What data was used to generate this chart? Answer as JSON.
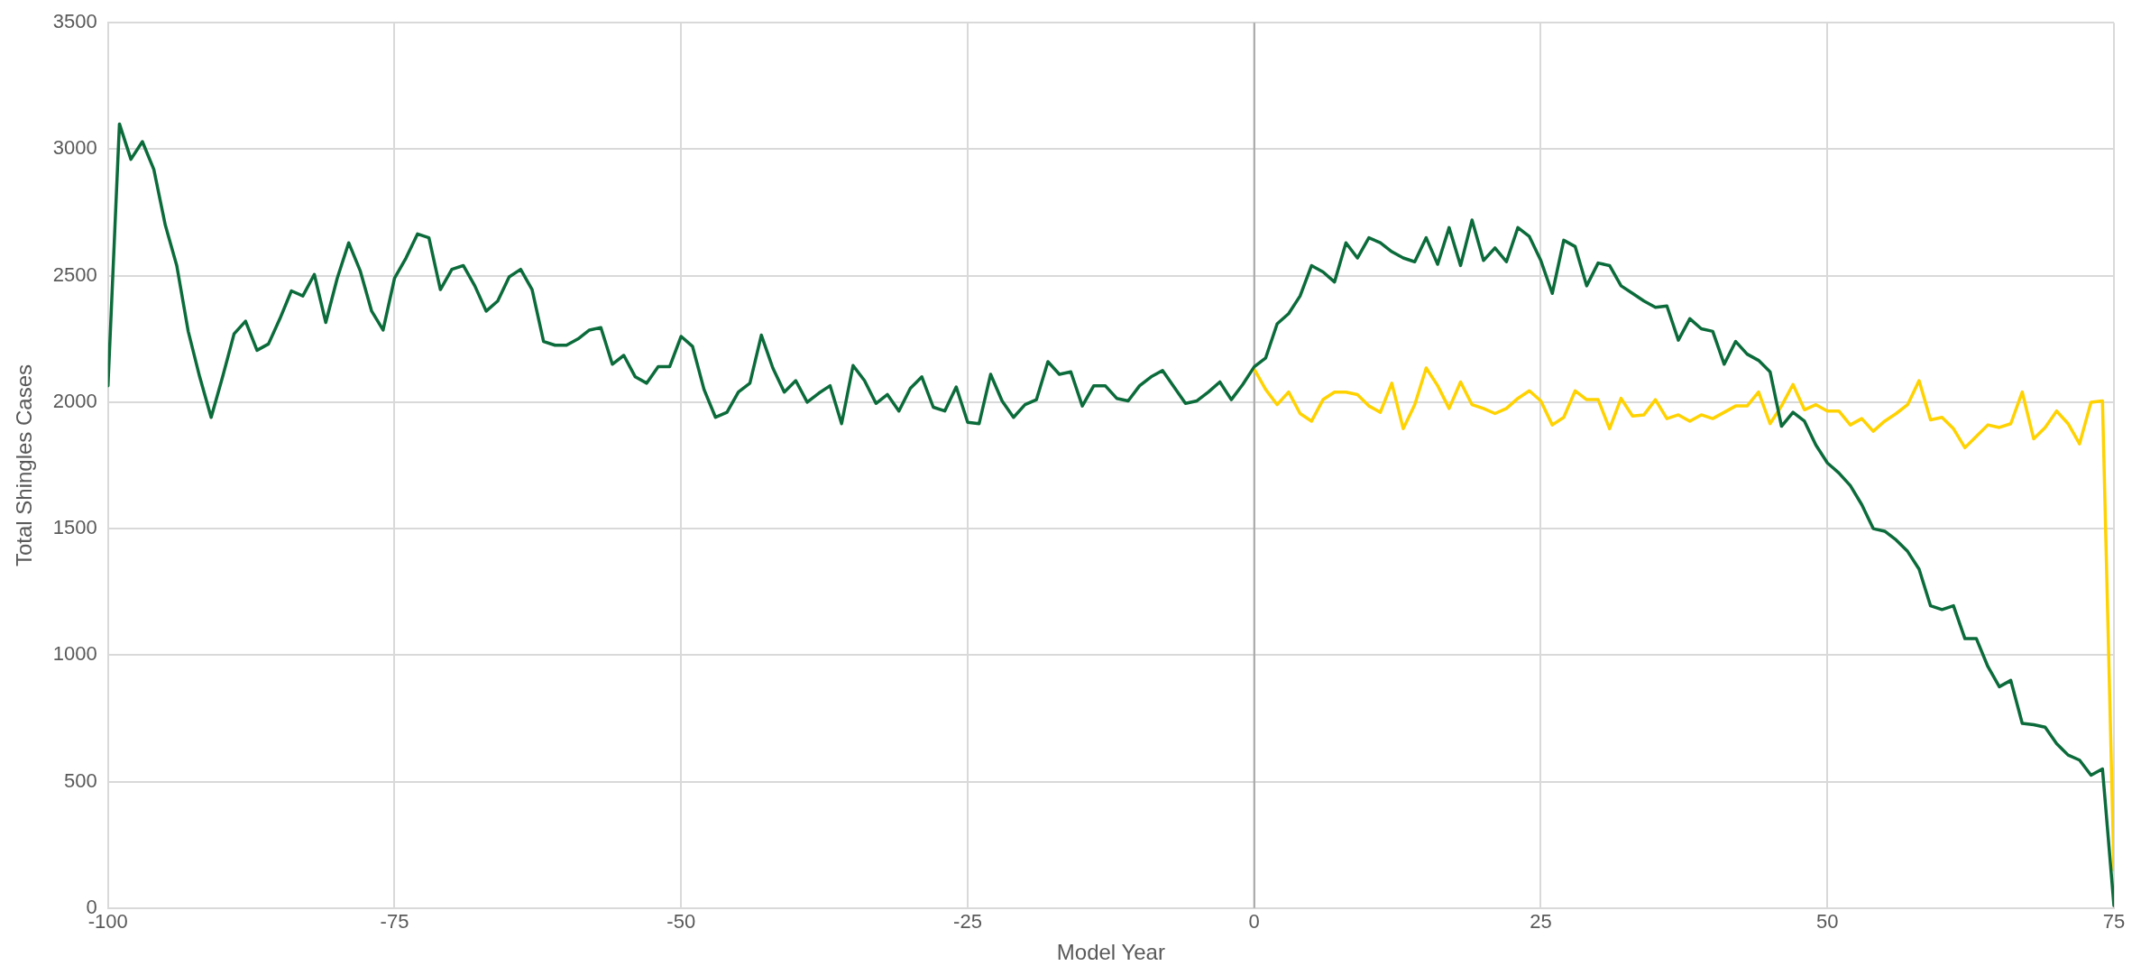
{
  "chart_data": {
    "type": "line",
    "xlabel": "Model Year",
    "ylabel": "Total Shingles Cases",
    "xlim": [
      -100,
      75
    ],
    "xticks": [
      -100,
      -75,
      -50,
      -25,
      0,
      25,
      50,
      75
    ],
    "ylim": [
      0,
      3500
    ],
    "yticks": [
      0,
      500,
      1000,
      1500,
      2000,
      2500,
      3000,
      3500
    ],
    "grid": true,
    "legend": false,
    "marker": "none",
    "line_style": "solid",
    "ref_lines": [
      {
        "axis": "x",
        "value": 0,
        "color": "#a6a6a6"
      }
    ],
    "series": [
      {
        "color": "#0b6b3a",
        "x": [
          -100,
          -99,
          -98,
          -97,
          -96,
          -95,
          -94,
          -93,
          -92,
          -91,
          -90,
          -89,
          -88,
          -87,
          -86,
          -85,
          -84,
          -83,
          -82,
          -81,
          -80,
          -79,
          -78,
          -77,
          -76,
          -75,
          -74,
          -73,
          -72,
          -71,
          -70,
          -69,
          -68,
          -67,
          -66,
          -65,
          -64,
          -63,
          -62,
          -61,
          -60,
          -59,
          -58,
          -57,
          -56,
          -55,
          -54,
          -53,
          -52,
          -51,
          -50,
          -49,
          -48,
          -47,
          -46,
          -45,
          -44,
          -43,
          -42,
          -41,
          -40,
          -39,
          -38,
          -37,
          -36,
          -35,
          -34,
          -33,
          -32,
          -31,
          -30,
          -29,
          -28,
          -27,
          -26,
          -25,
          -24,
          -23,
          -22,
          -21,
          -20,
          -19,
          -18,
          -17,
          -16,
          -15,
          -14,
          -13,
          -12,
          -11,
          -10,
          -9,
          -8,
          -7,
          -6,
          -5,
          -4,
          -3,
          -2,
          -1,
          0,
          1,
          2,
          3,
          4,
          5,
          6,
          7,
          8,
          9,
          10,
          11,
          12,
          13,
          14,
          15,
          16,
          17,
          18,
          19,
          20,
          21,
          22,
          23,
          24,
          25,
          26,
          27,
          28,
          29,
          30,
          31,
          32,
          33,
          34,
          35,
          36,
          37,
          38,
          39,
          40,
          41,
          42,
          43,
          44,
          45,
          46,
          47,
          48,
          49,
          50,
          51,
          52,
          53,
          54,
          55,
          56,
          57,
          58,
          59,
          60,
          61,
          62,
          63,
          64,
          65,
          66,
          67,
          68,
          69,
          70,
          71,
          72,
          73,
          74,
          75
        ],
        "values": [
          2065,
          3100,
          2960,
          3030,
          2920,
          2700,
          2540,
          2280,
          2100,
          1940,
          2100,
          2270,
          2320,
          2205,
          2230,
          2330,
          2440,
          2420,
          2505,
          2315,
          2490,
          2630,
          2520,
          2360,
          2285,
          2490,
          2570,
          2665,
          2650,
          2445,
          2525,
          2540,
          2460,
          2360,
          2400,
          2495,
          2525,
          2445,
          2240,
          2225,
          2225,
          2250,
          2285,
          2295,
          2150,
          2185,
          2100,
          2075,
          2140,
          2140,
          2260,
          2220,
          2050,
          1940,
          1960,
          2040,
          2075,
          2265,
          2135,
          2040,
          2085,
          2000,
          2035,
          2065,
          1915,
          2145,
          2085,
          1995,
          2030,
          1965,
          2055,
          2100,
          1980,
          1965,
          2060,
          1920,
          1915,
          2110,
          2005,
          1940,
          1990,
          2010,
          2160,
          2110,
          2120,
          1985,
          2065,
          2065,
          2015,
          2005,
          2065,
          2100,
          2125,
          2060,
          1995,
          2005,
          2040,
          2080,
          2010,
          2070,
          2140,
          2175,
          2310,
          2350,
          2420,
          2540,
          2515,
          2475,
          2630,
          2570,
          2650,
          2630,
          2595,
          2570,
          2555,
          2650,
          2545,
          2690,
          2540,
          2720,
          2560,
          2610,
          2555,
          2690,
          2655,
          2560,
          2430,
          2640,
          2615,
          2460,
          2550,
          2540,
          2460,
          2430,
          2400,
          2375,
          2380,
          2245,
          2330,
          2290,
          2280,
          2150,
          2240,
          2190,
          2165,
          2120,
          1905,
          1960,
          1925,
          1830,
          1760,
          1720,
          1670,
          1595,
          1500,
          1490,
          1455,
          1410,
          1340,
          1195,
          1180,
          1195,
          1065,
          1065,
          955,
          875,
          900,
          730,
          725,
          715,
          650,
          605,
          585,
          525,
          550,
          10
        ]
      },
      {
        "color": "#ffd200",
        "x": [
          0,
          1,
          2,
          3,
          4,
          5,
          6,
          7,
          8,
          9,
          10,
          11,
          12,
          13,
          14,
          15,
          16,
          17,
          18,
          19,
          20,
          21,
          22,
          23,
          24,
          25,
          26,
          27,
          28,
          29,
          30,
          31,
          32,
          33,
          34,
          35,
          36,
          37,
          38,
          39,
          40,
          41,
          42,
          43,
          44,
          45,
          46,
          47,
          48,
          49,
          50,
          51,
          52,
          53,
          54,
          55,
          56,
          57,
          58,
          59,
          60,
          61,
          62,
          63,
          64,
          65,
          66,
          67,
          68,
          69,
          70,
          71,
          72,
          73,
          74,
          75
        ],
        "values": [
          2130,
          2050,
          1990,
          2040,
          1955,
          1925,
          2010,
          2040,
          2040,
          2030,
          1985,
          1960,
          2075,
          1895,
          1990,
          2135,
          2065,
          1975,
          2080,
          1990,
          1975,
          1955,
          1975,
          2015,
          2045,
          2005,
          1910,
          1940,
          2045,
          2010,
          2010,
          1895,
          2015,
          1945,
          1950,
          2010,
          1935,
          1950,
          1925,
          1950,
          1935,
          1960,
          1985,
          1985,
          2040,
          1915,
          1985,
          2070,
          1970,
          1990,
          1965,
          1965,
          1910,
          1935,
          1885,
          1925,
          1955,
          1990,
          2085,
          1930,
          1940,
          1895,
          1820,
          1865,
          1910,
          1900,
          1915,
          2040,
          1855,
          1900,
          1965,
          1915,
          1835,
          2000,
          2005,
          150
        ]
      }
    ]
  }
}
